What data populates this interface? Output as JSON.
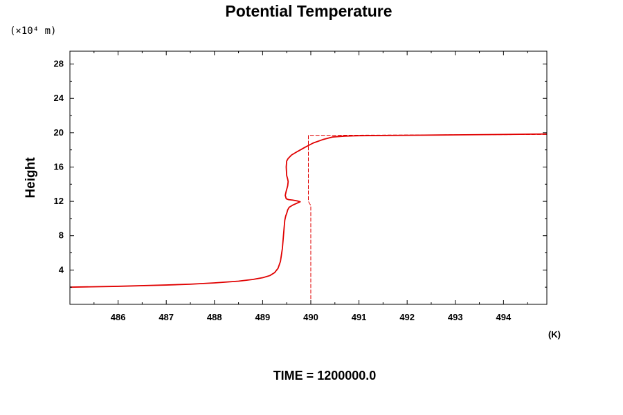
{
  "chart_data": {
    "type": "line",
    "title": "Potential Temperature",
    "xlabel": "",
    "x_unit_label": "(K)",
    "ylabel": "Height",
    "y_unit_label": "(×10⁴ m)",
    "footer": "TIME = 1200000.0",
    "xlim": [
      485.0,
      494.9
    ],
    "ylim": [
      0,
      29.5
    ],
    "x_ticks": [
      486,
      487,
      488,
      489,
      490,
      491,
      492,
      493,
      494
    ],
    "x_tick_labels": [
      "486",
      "487",
      "488",
      "489",
      "490",
      "491",
      "492",
      "493",
      "494"
    ],
    "y_ticks": [
      4,
      8,
      12,
      16,
      20,
      24,
      28
    ],
    "y_tick_labels": [
      "4",
      "8",
      "12",
      "16",
      "20",
      "24",
      "28"
    ],
    "grid": false,
    "series": [
      {
        "style": "solid",
        "color": "#e00000",
        "x": [
          485.0,
          486.0,
          487.0,
          487.5,
          488.0,
          488.5,
          488.8,
          489.0,
          489.15,
          489.25,
          489.32,
          489.37,
          489.41,
          489.44,
          489.46,
          489.48,
          489.5,
          489.51,
          489.52,
          489.55,
          489.62,
          489.7,
          489.76,
          489.78,
          489.72,
          489.62,
          489.54,
          489.49,
          489.47,
          489.49,
          489.52,
          489.53,
          489.52,
          489.5,
          489.49,
          489.5,
          489.53,
          489.6,
          489.72,
          489.88,
          490.05,
          490.25,
          490.45,
          490.7,
          491.0,
          492.0,
          493.0,
          494.0,
          494.9
        ],
        "y": [
          2.0,
          2.1,
          2.25,
          2.35,
          2.5,
          2.7,
          2.9,
          3.1,
          3.35,
          3.7,
          4.2,
          5.0,
          6.5,
          8.5,
          9.8,
          10.3,
          10.6,
          10.8,
          11.0,
          11.3,
          11.55,
          11.75,
          11.9,
          11.95,
          12.05,
          12.15,
          12.2,
          12.3,
          12.7,
          13.2,
          13.8,
          14.3,
          14.6,
          15.0,
          16.0,
          16.7,
          17.0,
          17.4,
          17.8,
          18.3,
          18.8,
          19.2,
          19.5,
          19.6,
          19.65,
          19.7,
          19.75,
          19.8,
          19.85
        ]
      },
      {
        "style": "dashed",
        "color": "#e00000",
        "x": [
          490.0,
          490.0,
          489.95,
          489.95,
          490.5,
          494.9
        ],
        "y": [
          0.0,
          11.5,
          12.0,
          19.7,
          19.7,
          19.8
        ]
      }
    ]
  }
}
